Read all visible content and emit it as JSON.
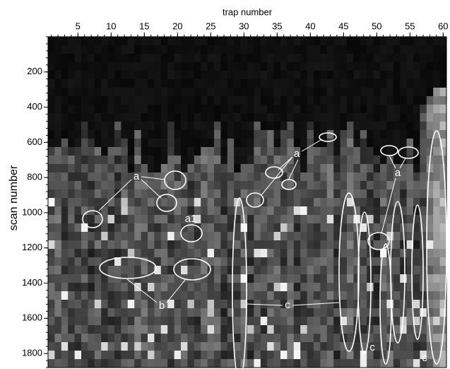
{
  "chart_data": {
    "type": "image",
    "xlabel": "trap number",
    "ylabel": "scan number",
    "xlim": [
      0.5,
      60.5
    ],
    "xticks": [
      5,
      10,
      15,
      20,
      25,
      30,
      35,
      40,
      45,
      50,
      55,
      60
    ],
    "ylim": [
      0,
      1880
    ],
    "yticks": [
      200,
      400,
      600,
      800,
      1000,
      1200,
      1400,
      1600,
      1800
    ],
    "annotations": [
      "a",
      "a",
      "a",
      "a1",
      "b",
      "c",
      "c",
      "c"
    ]
  }
}
